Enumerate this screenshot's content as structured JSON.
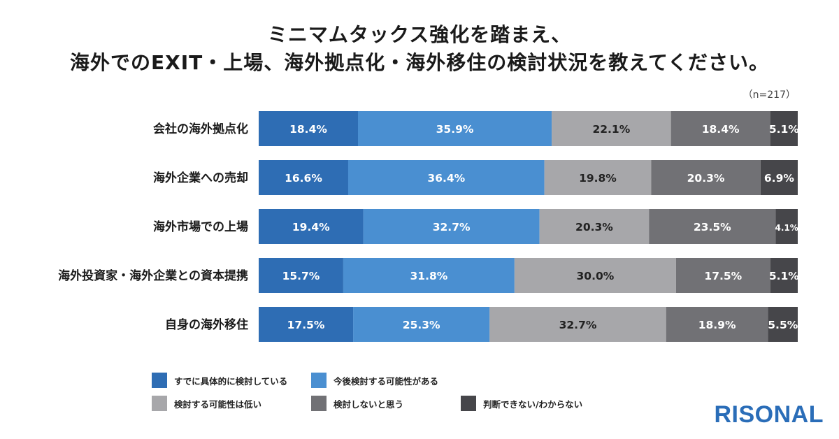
{
  "title_lines": [
    "ミニマムタックス強化を踏まえ、",
    "海外でのEXIT・上場、海外拠点化・海外移住の検討状況を教えてください。"
  ],
  "sample_note": "（n=217）",
  "logo_text": "RISONAL",
  "colors": [
    "#2e6db4",
    "#4a8fd1",
    "#a7a7aa",
    "#717175",
    "#46464a"
  ],
  "chart_data": {
    "type": "bar",
    "orientation": "horizontal",
    "stacked": true,
    "percent": true,
    "title": "ミニマムタックス強化を踏まえ、海外でのEXIT・上場、海外拠点化・海外移住の検討状況を教えてください。",
    "categories": [
      "会社の海外拠点化",
      "海外企業への売却",
      "海外市場での上場",
      "海外投資家・海外企業との資本提携",
      "自身の海外移住"
    ],
    "series": [
      {
        "name": "すでに具体的に検討している",
        "values": [
          18.4,
          16.6,
          19.4,
          15.7,
          17.5
        ],
        "labels": [
          "18.4%",
          "16.6%",
          "19.4%",
          "15.7%",
          "17.5%"
        ]
      },
      {
        "name": "今後検討する可能性がある",
        "values": [
          35.9,
          36.4,
          32.7,
          31.8,
          25.3
        ],
        "labels": [
          "35.9%",
          "36.4%",
          "32.7%",
          "31.8%",
          "25.3%"
        ]
      },
      {
        "name": "検討する可能性は低い",
        "values": [
          22.1,
          19.8,
          20.3,
          30.0,
          32.7
        ],
        "labels": [
          "22.1%",
          "19.8%",
          "20.3%",
          "30.0%",
          "32.7%"
        ]
      },
      {
        "name": "検討しないと思う",
        "values": [
          18.4,
          20.3,
          23.5,
          17.5,
          18.9
        ],
        "labels": [
          "18.4%",
          "20.3%",
          "23.5%",
          "17.5%",
          "18.9%"
        ]
      },
      {
        "name": "判断できない/わからない",
        "values": [
          5.1,
          6.9,
          4.1,
          5.1,
          5.5
        ],
        "labels": [
          "5.1%",
          "6.9%",
          "4.1%",
          "5.1%",
          "5.5%"
        ]
      }
    ],
    "legend_position": "bottom",
    "grid": false
  }
}
